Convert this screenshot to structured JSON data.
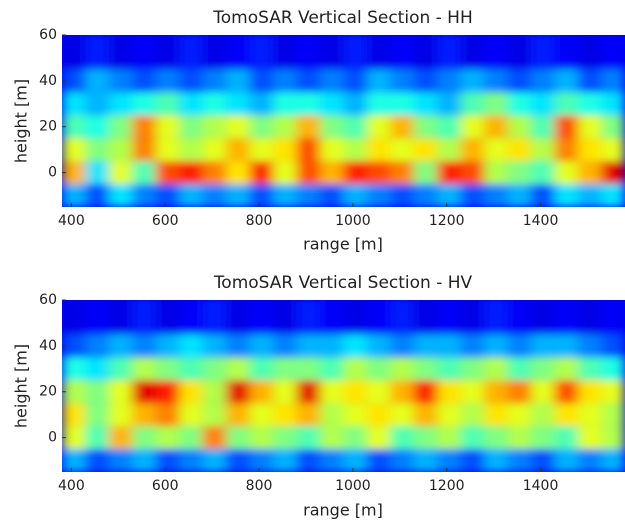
{
  "chart_data": [
    {
      "type": "heatmap",
      "title": "TomoSAR Vertical Section - HH",
      "xlabel": "range [m]",
      "ylabel": "height [m]",
      "colormap": "jet",
      "xlim": [
        380,
        1580
      ],
      "ylim": [
        -15,
        60
      ],
      "xticks": [
        400,
        600,
        800,
        1000,
        1200,
        1400
      ],
      "yticks": [
        0,
        20,
        40,
        60
      ],
      "x_bins": [
        380,
        430,
        480,
        530,
        580,
        630,
        680,
        730,
        780,
        830,
        880,
        930,
        980,
        1030,
        1080,
        1130,
        1180,
        1230,
        1280,
        1330,
        1380,
        1430,
        1480,
        1530,
        1580
      ],
      "y_bins": [
        -15,
        -5,
        5,
        15,
        25,
        35,
        45,
        60
      ],
      "z": [
        [
          0.3,
          0.2,
          0.35,
          0.25,
          0.2,
          0.3,
          0.25,
          0.3,
          0.2,
          0.3,
          0.25,
          0.2,
          0.3,
          0.25,
          0.2,
          0.25,
          0.3,
          0.2,
          0.25,
          0.3,
          0.2,
          0.35,
          0.3,
          0.35
        ],
        [
          0.7,
          0.35,
          0.6,
          0.45,
          0.8,
          0.85,
          0.75,
          0.65,
          0.85,
          0.6,
          0.8,
          0.7,
          0.85,
          0.8,
          0.75,
          0.5,
          0.85,
          0.8,
          0.55,
          0.5,
          0.45,
          0.6,
          0.7,
          0.9
        ],
        [
          0.6,
          0.5,
          0.55,
          0.75,
          0.6,
          0.55,
          0.6,
          0.7,
          0.6,
          0.65,
          0.8,
          0.6,
          0.55,
          0.65,
          0.6,
          0.65,
          0.55,
          0.7,
          0.6,
          0.65,
          0.55,
          0.75,
          0.65,
          0.6
        ],
        [
          0.45,
          0.4,
          0.5,
          0.75,
          0.6,
          0.5,
          0.55,
          0.6,
          0.5,
          0.55,
          0.7,
          0.5,
          0.45,
          0.6,
          0.7,
          0.5,
          0.45,
          0.6,
          0.7,
          0.55,
          0.45,
          0.8,
          0.6,
          0.5
        ],
        [
          0.35,
          0.3,
          0.35,
          0.4,
          0.45,
          0.35,
          0.4,
          0.35,
          0.3,
          0.4,
          0.4,
          0.35,
          0.3,
          0.4,
          0.4,
          0.35,
          0.3,
          0.45,
          0.5,
          0.4,
          0.35,
          0.45,
          0.4,
          0.35
        ],
        [
          0.2,
          0.3,
          0.25,
          0.2,
          0.25,
          0.2,
          0.25,
          0.3,
          0.2,
          0.25,
          0.2,
          0.25,
          0.2,
          0.3,
          0.25,
          0.2,
          0.25,
          0.3,
          0.25,
          0.2,
          0.25,
          0.3,
          0.2,
          0.25
        ],
        [
          0.1,
          0.15,
          0.1,
          0.12,
          0.1,
          0.15,
          0.1,
          0.12,
          0.15,
          0.1,
          0.12,
          0.1,
          0.15,
          0.1,
          0.12,
          0.1,
          0.15,
          0.1,
          0.12,
          0.1,
          0.15,
          0.12,
          0.1,
          0.12
        ]
      ]
    },
    {
      "type": "heatmap",
      "title": "TomoSAR Vertical Section - HV",
      "xlabel": "range [m]",
      "ylabel": "height [m]",
      "colormap": "jet",
      "xlim": [
        380,
        1580
      ],
      "ylim": [
        -15,
        60
      ],
      "xticks": [
        400,
        600,
        800,
        1000,
        1200,
        1400
      ],
      "yticks": [
        0,
        20,
        40,
        60
      ],
      "x_bins": [
        380,
        430,
        480,
        530,
        580,
        630,
        680,
        730,
        780,
        830,
        880,
        930,
        980,
        1030,
        1080,
        1130,
        1180,
        1230,
        1280,
        1330,
        1380,
        1430,
        1480,
        1530,
        1580
      ],
      "y_bins": [
        -15,
        -5,
        5,
        15,
        25,
        35,
        45,
        60
      ],
      "z": [
        [
          0.3,
          0.2,
          0.25,
          0.3,
          0.2,
          0.25,
          0.3,
          0.2,
          0.25,
          0.3,
          0.2,
          0.25,
          0.3,
          0.2,
          0.25,
          0.3,
          0.25,
          0.2,
          0.3,
          0.25,
          0.2,
          0.3,
          0.25,
          0.3
        ],
        [
          0.6,
          0.45,
          0.7,
          0.5,
          0.55,
          0.5,
          0.75,
          0.5,
          0.55,
          0.5,
          0.45,
          0.55,
          0.5,
          0.6,
          0.45,
          0.5,
          0.55,
          0.45,
          0.5,
          0.55,
          0.5,
          0.45,
          0.6,
          0.55
        ],
        [
          0.65,
          0.5,
          0.6,
          0.7,
          0.75,
          0.6,
          0.55,
          0.7,
          0.6,
          0.65,
          0.7,
          0.55,
          0.6,
          0.65,
          0.6,
          0.7,
          0.6,
          0.55,
          0.65,
          0.6,
          0.55,
          0.65,
          0.6,
          0.55
        ],
        [
          0.55,
          0.5,
          0.6,
          0.9,
          0.85,
          0.65,
          0.55,
          0.9,
          0.7,
          0.6,
          0.9,
          0.6,
          0.65,
          0.6,
          0.7,
          0.85,
          0.65,
          0.6,
          0.7,
          0.75,
          0.6,
          0.8,
          0.65,
          0.6
        ],
        [
          0.4,
          0.35,
          0.45,
          0.55,
          0.5,
          0.45,
          0.5,
          0.55,
          0.45,
          0.5,
          0.5,
          0.45,
          0.55,
          0.5,
          0.55,
          0.5,
          0.45,
          0.5,
          0.55,
          0.45,
          0.5,
          0.55,
          0.45,
          0.4
        ],
        [
          0.2,
          0.25,
          0.3,
          0.25,
          0.3,
          0.35,
          0.3,
          0.25,
          0.3,
          0.25,
          0.3,
          0.3,
          0.35,
          0.3,
          0.25,
          0.3,
          0.3,
          0.25,
          0.3,
          0.25,
          0.3,
          0.3,
          0.25,
          0.2
        ],
        [
          0.1,
          0.12,
          0.1,
          0.15,
          0.1,
          0.12,
          0.15,
          0.1,
          0.12,
          0.1,
          0.15,
          0.12,
          0.1,
          0.12,
          0.15,
          0.1,
          0.12,
          0.1,
          0.15,
          0.12,
          0.1,
          0.12,
          0.1,
          0.12
        ]
      ]
    }
  ]
}
